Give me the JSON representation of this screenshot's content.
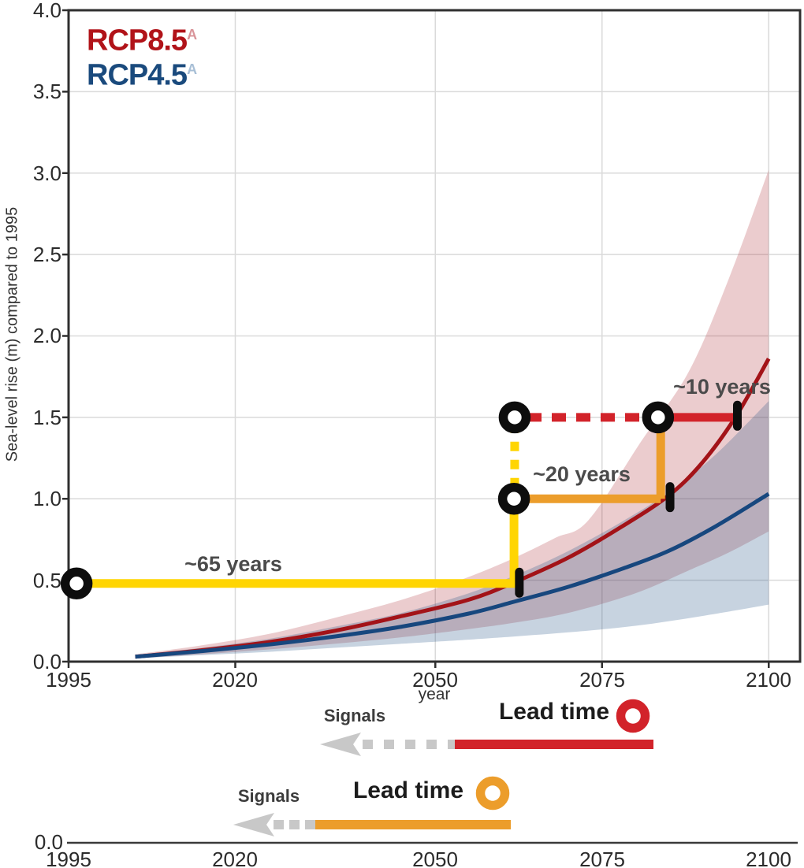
{
  "figure": {
    "background": "#ffffff"
  },
  "chart_data": {
    "type": "line",
    "title": "",
    "xlabel": "year",
    "ylabel": "Sea-level rise (m) compared to 1995",
    "xlim": [
      1995,
      2104.7
    ],
    "ylim": [
      0,
      4
    ],
    "grid": true,
    "x_ticks": [
      "1995",
      "2020",
      "2050",
      "2075",
      "2100"
    ],
    "x_tick_years": [
      1995,
      2020,
      2050,
      2075,
      2100
    ],
    "y_ticks": [
      "4.0",
      "3.5",
      "3.0",
      "2.5",
      "2.0",
      "1.5",
      "1.0",
      "0.5",
      "0.0"
    ],
    "y_tick_values": [
      4.0,
      3.5,
      3.0,
      2.5,
      2.0,
      1.5,
      1.0,
      0.5,
      0.0
    ],
    "legend": {
      "position": "top-left",
      "entries": [
        {
          "label": "RCP8.5",
          "sup": "A",
          "color": "#B11319",
          "sup_color": "#D9959A"
        },
        {
          "label": "RCP4.5",
          "sup": "A",
          "color": "#1A4A7D",
          "sup_color": "#A8BFD6"
        }
      ]
    },
    "series": [
      {
        "name": "RCP8.5",
        "color": "#A31318",
        "band_color": "rgba(164,24,31,0.22)",
        "central": [
          [
            2005,
            0.03
          ],
          [
            2015,
            0.07
          ],
          [
            2025,
            0.12
          ],
          [
            2035,
            0.19
          ],
          [
            2045,
            0.28
          ],
          [
            2055,
            0.38
          ],
          [
            2062,
            0.49
          ],
          [
            2070,
            0.64
          ],
          [
            2078,
            0.83
          ],
          [
            2085,
            1.02
          ],
          [
            2090,
            1.22
          ],
          [
            2095,
            1.5
          ],
          [
            2100,
            1.86
          ]
        ],
        "upper": [
          [
            2005,
            0.045
          ],
          [
            2015,
            0.1
          ],
          [
            2025,
            0.17
          ],
          [
            2035,
            0.27
          ],
          [
            2045,
            0.38
          ],
          [
            2055,
            0.52
          ],
          [
            2062,
            0.64
          ],
          [
            2068,
            0.76
          ],
          [
            2073,
            0.87
          ],
          [
            2081,
            1.36
          ],
          [
            2088,
            1.78
          ],
          [
            2094,
            2.35
          ],
          [
            2100,
            3.02
          ]
        ],
        "lower": [
          [
            2005,
            0.02
          ],
          [
            2015,
            0.045
          ],
          [
            2025,
            0.075
          ],
          [
            2035,
            0.11
          ],
          [
            2045,
            0.15
          ],
          [
            2055,
            0.2
          ],
          [
            2062,
            0.24
          ],
          [
            2070,
            0.3
          ],
          [
            2080,
            0.42
          ],
          [
            2088,
            0.56
          ],
          [
            2094,
            0.67
          ],
          [
            2100,
            0.8
          ]
        ]
      },
      {
        "name": "RCP4.5",
        "color": "#17477E",
        "band_color": "rgba(39,86,137,0.26)",
        "central": [
          [
            2005,
            0.03
          ],
          [
            2015,
            0.065
          ],
          [
            2025,
            0.105
          ],
          [
            2035,
            0.155
          ],
          [
            2045,
            0.215
          ],
          [
            2055,
            0.295
          ],
          [
            2062,
            0.37
          ],
          [
            2070,
            0.46
          ],
          [
            2078,
            0.57
          ],
          [
            2085,
            0.68
          ],
          [
            2092,
            0.83
          ],
          [
            2100,
            1.03
          ]
        ],
        "upper": [
          [
            2005,
            0.04
          ],
          [
            2015,
            0.085
          ],
          [
            2025,
            0.14
          ],
          [
            2035,
            0.215
          ],
          [
            2045,
            0.3
          ],
          [
            2055,
            0.42
          ],
          [
            2062,
            0.53
          ],
          [
            2070,
            0.68
          ],
          [
            2078,
            0.86
          ],
          [
            2085,
            1.04
          ],
          [
            2092,
            1.27
          ],
          [
            2100,
            1.6
          ]
        ],
        "lower": [
          [
            2005,
            0.02
          ],
          [
            2015,
            0.04
          ],
          [
            2025,
            0.06
          ],
          [
            2035,
            0.085
          ],
          [
            2045,
            0.11
          ],
          [
            2055,
            0.135
          ],
          [
            2062,
            0.155
          ],
          [
            2070,
            0.18
          ],
          [
            2080,
            0.22
          ],
          [
            2090,
            0.28
          ],
          [
            2100,
            0.35
          ]
        ]
      }
    ],
    "annotations": {
      "labels": [
        {
          "text": "~65 years",
          "year": 2019.7,
          "value": 0.6
        },
        {
          "text": "~20 years",
          "year": 2072.0,
          "value": 1.15
        },
        {
          "text": "~10 years",
          "year": 2093.0,
          "value": 1.69
        }
      ],
      "segments": [
        {
          "id": "signal-65-years",
          "x1": 1996.2,
          "y1": 0.48,
          "x2": 2062.0,
          "y2": 0.48,
          "color": "#FFD502",
          "width": 11,
          "dash": ""
        },
        {
          "id": "rise-to-1m",
          "x1": 2061.8,
          "y1": 0.48,
          "x2": 2061.8,
          "y2": 1.0,
          "color": "#FFD502",
          "width": 11,
          "dash": ""
        },
        {
          "id": "dash-to-1-5m",
          "x1": 2061.9,
          "y1": 1.07,
          "x2": 2061.9,
          "y2": 1.44,
          "color": "#FFD502",
          "width": 11,
          "dash": "12 11"
        },
        {
          "id": "lead-20-years",
          "x1": 2061.8,
          "y1": 1.0,
          "x2": 2083.8,
          "y2": 1.0,
          "color": "#EC9D2B",
          "width": 11,
          "dash": ""
        },
        {
          "id": "rise-to-1-5m",
          "x1": 2083.8,
          "y1": 1.0,
          "x2": 2083.8,
          "y2": 1.47,
          "color": "#EC9D2B",
          "width": 11,
          "dash": ""
        },
        {
          "id": "dash-10-years",
          "x1": 2063.8,
          "y1": 1.5,
          "x2": 2081.5,
          "y2": 1.5,
          "color": "#D2232A",
          "width": 11,
          "dash": "18 13"
        },
        {
          "id": "lead-10-years",
          "x1": 2083.4,
          "y1": 1.5,
          "x2": 2095.2,
          "y2": 1.5,
          "color": "#D2232A",
          "width": 11,
          "dash": ""
        }
      ],
      "rings": [
        {
          "year": 1996.2,
          "value": 0.48
        },
        {
          "year": 2061.9,
          "value": 1.5
        },
        {
          "year": 2061.8,
          "value": 1.0
        },
        {
          "year": 2083.4,
          "value": 1.5
        }
      ],
      "curve_ticks": [
        {
          "year": 2062.6,
          "value": 0.485
        },
        {
          "year": 2085.2,
          "value": 1.01
        },
        {
          "year": 2095.3,
          "value": 1.51
        }
      ]
    }
  },
  "signal_legend": [
    {
      "signals_label": "Signals",
      "lead_time_label": "Lead time",
      "bar_color": "#D2232A",
      "arrow_color": "#C8C8C8"
    },
    {
      "signals_label": "Signals",
      "lead_time_label": "Lead time",
      "bar_color": "#EC9D2B",
      "arrow_color": "#C8C8C8"
    }
  ],
  "bottom_axis": {
    "zero_label": "0.0",
    "ticks": [
      "1995",
      "2020",
      "2050",
      "2075",
      "2100"
    ]
  },
  "colors": {
    "grid": "#dadada",
    "frame": "#2f2f2f",
    "ring_black": "#0d0d0d",
    "yellow": "#FFD502",
    "orange": "#EC9D2B",
    "signal_red": "#D2232A"
  }
}
